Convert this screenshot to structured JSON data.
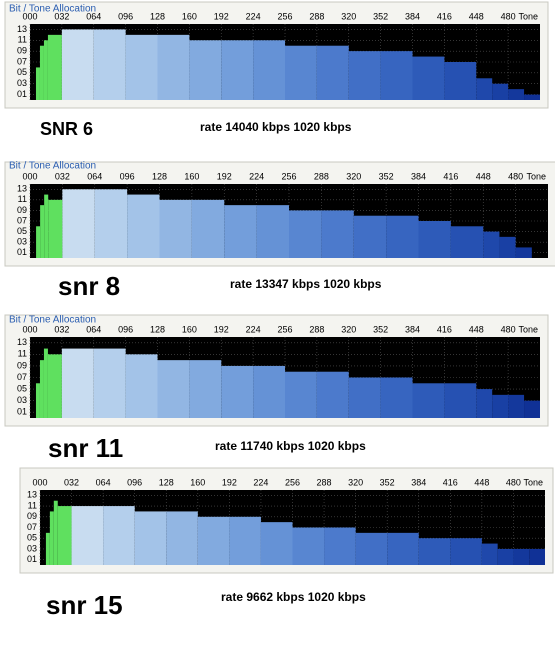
{
  "chart_data": [
    {
      "type": "histogram",
      "title": "Bit / Tone Allocation",
      "caption": "SNR 6",
      "rate": "rate 14040 kbps 1020 kbps",
      "x_label": "Tone",
      "bins": [
        6,
        10,
        14,
        18,
        32,
        64,
        96,
        128,
        160,
        192,
        224,
        256,
        288,
        320,
        352,
        384,
        416,
        448,
        464,
        480,
        496,
        512
      ],
      "values": [
        6,
        10,
        11,
        12,
        13,
        13,
        12,
        12,
        11,
        11,
        11,
        10,
        10,
        9,
        9,
        8,
        7,
        4,
        3,
        2,
        1
      ],
      "colors": [
        "#5fe05f",
        "#5fe05f",
        "#5fe05f",
        "#5fe05f",
        "#c8dcf0",
        "#b4cfec",
        "#a3c3e8",
        "#92b6e3",
        "#82aadf",
        "#739edb",
        "#6592d6",
        "#5886d1",
        "#4c7acc",
        "#416fc6",
        "#3765c0",
        "#2e5bb9",
        "#2651b2",
        "#1f48ab",
        "#1940a4",
        "#14389c",
        "#103196"
      ],
      "xlim": [
        0,
        512
      ],
      "ylim": [
        0,
        14
      ],
      "xticks": [
        {
          "value": 0,
          "label": "000"
        },
        {
          "value": 32,
          "label": "032"
        },
        {
          "value": 64,
          "label": "064"
        },
        {
          "value": 96,
          "label": "096"
        },
        128,
        160,
        192,
        224,
        256,
        288,
        320,
        352,
        384,
        416,
        448,
        480
      ],
      "yticks": [
        {
          "value": 1,
          "label": "01"
        },
        {
          "value": 3,
          "label": "03"
        },
        {
          "value": 5,
          "label": "05"
        },
        {
          "value": 7,
          "label": "07"
        },
        {
          "value": 9,
          "label": "09"
        },
        11,
        13
      ]
    },
    {
      "type": "histogram",
      "title": "Bit / Tone Allocation",
      "caption": "snr 8",
      "rate": "rate 13347 kbps 1020 kbps",
      "x_label": "Tone",
      "bins": [
        6,
        10,
        14,
        18,
        32,
        64,
        96,
        128,
        160,
        192,
        224,
        256,
        288,
        320,
        352,
        384,
        416,
        448,
        464,
        480,
        496,
        512
      ],
      "values": [
        6,
        10,
        12,
        11,
        13,
        13,
        12,
        11,
        11,
        10,
        10,
        9,
        9,
        8,
        8,
        7,
        6,
        5,
        4,
        2,
        0
      ],
      "colors": [
        "#5fe05f",
        "#5fe05f",
        "#5fe05f",
        "#5fe05f",
        "#c8dcf0",
        "#b4cfec",
        "#a3c3e8",
        "#92b6e3",
        "#82aadf",
        "#739edb",
        "#6592d6",
        "#5886d1",
        "#4c7acc",
        "#416fc6",
        "#3765c0",
        "#2e5bb9",
        "#2651b2",
        "#1f48ab",
        "#1940a4",
        "#14389c",
        "#103196"
      ],
      "xlim": [
        0,
        512
      ],
      "ylim": [
        0,
        14
      ],
      "xticks": [
        {
          "value": 0,
          "label": "000"
        },
        {
          "value": 32,
          "label": "032"
        },
        {
          "value": 64,
          "label": "064"
        },
        {
          "value": 96,
          "label": "096"
        },
        128,
        160,
        192,
        224,
        256,
        288,
        320,
        352,
        384,
        416,
        448,
        480
      ],
      "yticks": [
        {
          "value": 1,
          "label": "01"
        },
        {
          "value": 3,
          "label": "03"
        },
        {
          "value": 5,
          "label": "05"
        },
        {
          "value": 7,
          "label": "07"
        },
        {
          "value": 9,
          "label": "09"
        },
        11,
        13
      ]
    },
    {
      "type": "histogram",
      "title": "Bit / Tone Allocation",
      "caption": "snr 11",
      "rate": "rate 11740 kbps 1020 kbps",
      "x_label": "Tone",
      "bins": [
        6,
        10,
        14,
        18,
        32,
        64,
        96,
        128,
        160,
        192,
        224,
        256,
        288,
        320,
        352,
        384,
        416,
        448,
        464,
        480,
        496,
        512
      ],
      "values": [
        6,
        10,
        12,
        11,
        12,
        12,
        11,
        10,
        10,
        9,
        9,
        8,
        8,
        7,
        7,
        6,
        6,
        5,
        4,
        4,
        3
      ],
      "colors": [
        "#5fe05f",
        "#5fe05f",
        "#5fe05f",
        "#5fe05f",
        "#c8dcf0",
        "#b4cfec",
        "#a3c3e8",
        "#92b6e3",
        "#82aadf",
        "#739edb",
        "#6592d6",
        "#5886d1",
        "#4c7acc",
        "#416fc6",
        "#3765c0",
        "#2e5bb9",
        "#2651b2",
        "#1f48ab",
        "#1940a4",
        "#14389c",
        "#103196"
      ],
      "xlim": [
        0,
        512
      ],
      "ylim": [
        0,
        14
      ],
      "xticks": [
        {
          "value": 0,
          "label": "000"
        },
        {
          "value": 32,
          "label": "032"
        },
        {
          "value": 64,
          "label": "064"
        },
        {
          "value": 96,
          "label": "096"
        },
        128,
        160,
        192,
        224,
        256,
        288,
        320,
        352,
        384,
        416,
        448,
        480
      ],
      "yticks": [
        {
          "value": 1,
          "label": "01"
        },
        {
          "value": 3,
          "label": "03"
        },
        {
          "value": 5,
          "label": "05"
        },
        {
          "value": 7,
          "label": "07"
        },
        {
          "value": 9,
          "label": "09"
        },
        11,
        13
      ]
    },
    {
      "type": "histogram",
      "caption": "snr 15",
      "rate": "rate 9662 kbps 1020 kbps",
      "x_label": "Tone",
      "bins": [
        6,
        10,
        14,
        18,
        32,
        64,
        96,
        128,
        160,
        192,
        224,
        256,
        288,
        320,
        352,
        384,
        416,
        448,
        464,
        480,
        496,
        512
      ],
      "values": [
        6,
        10,
        12,
        11,
        11,
        11,
        10,
        10,
        9,
        9,
        8,
        7,
        7,
        6,
        6,
        5,
        5,
        4,
        3,
        3,
        3
      ],
      "colors": [
        "#5fe05f",
        "#5fe05f",
        "#5fe05f",
        "#5fe05f",
        "#c8dcf0",
        "#b4cfec",
        "#a3c3e8",
        "#92b6e3",
        "#82aadf",
        "#739edb",
        "#6592d6",
        "#5886d1",
        "#4c7acc",
        "#416fc6",
        "#3765c0",
        "#2e5bb9",
        "#2651b2",
        "#1f48ab",
        "#1940a4",
        "#14389c",
        "#103196"
      ],
      "xlim": [
        0,
        512
      ],
      "ylim": [
        0,
        14
      ],
      "xticks": [
        {
          "value": 0,
          "label": "000"
        },
        {
          "value": 32,
          "label": "032"
        },
        {
          "value": 64,
          "label": "064"
        },
        {
          "value": 96,
          "label": "096"
        },
        128,
        160,
        192,
        224,
        256,
        288,
        320,
        352,
        384,
        416,
        448,
        480
      ],
      "yticks": [
        {
          "value": 1,
          "label": "01"
        },
        {
          "value": 3,
          "label": "03"
        },
        {
          "value": 5,
          "label": "05"
        },
        {
          "value": 7,
          "label": "07"
        },
        {
          "value": 9,
          "label": "09"
        },
        11,
        13
      ]
    }
  ]
}
